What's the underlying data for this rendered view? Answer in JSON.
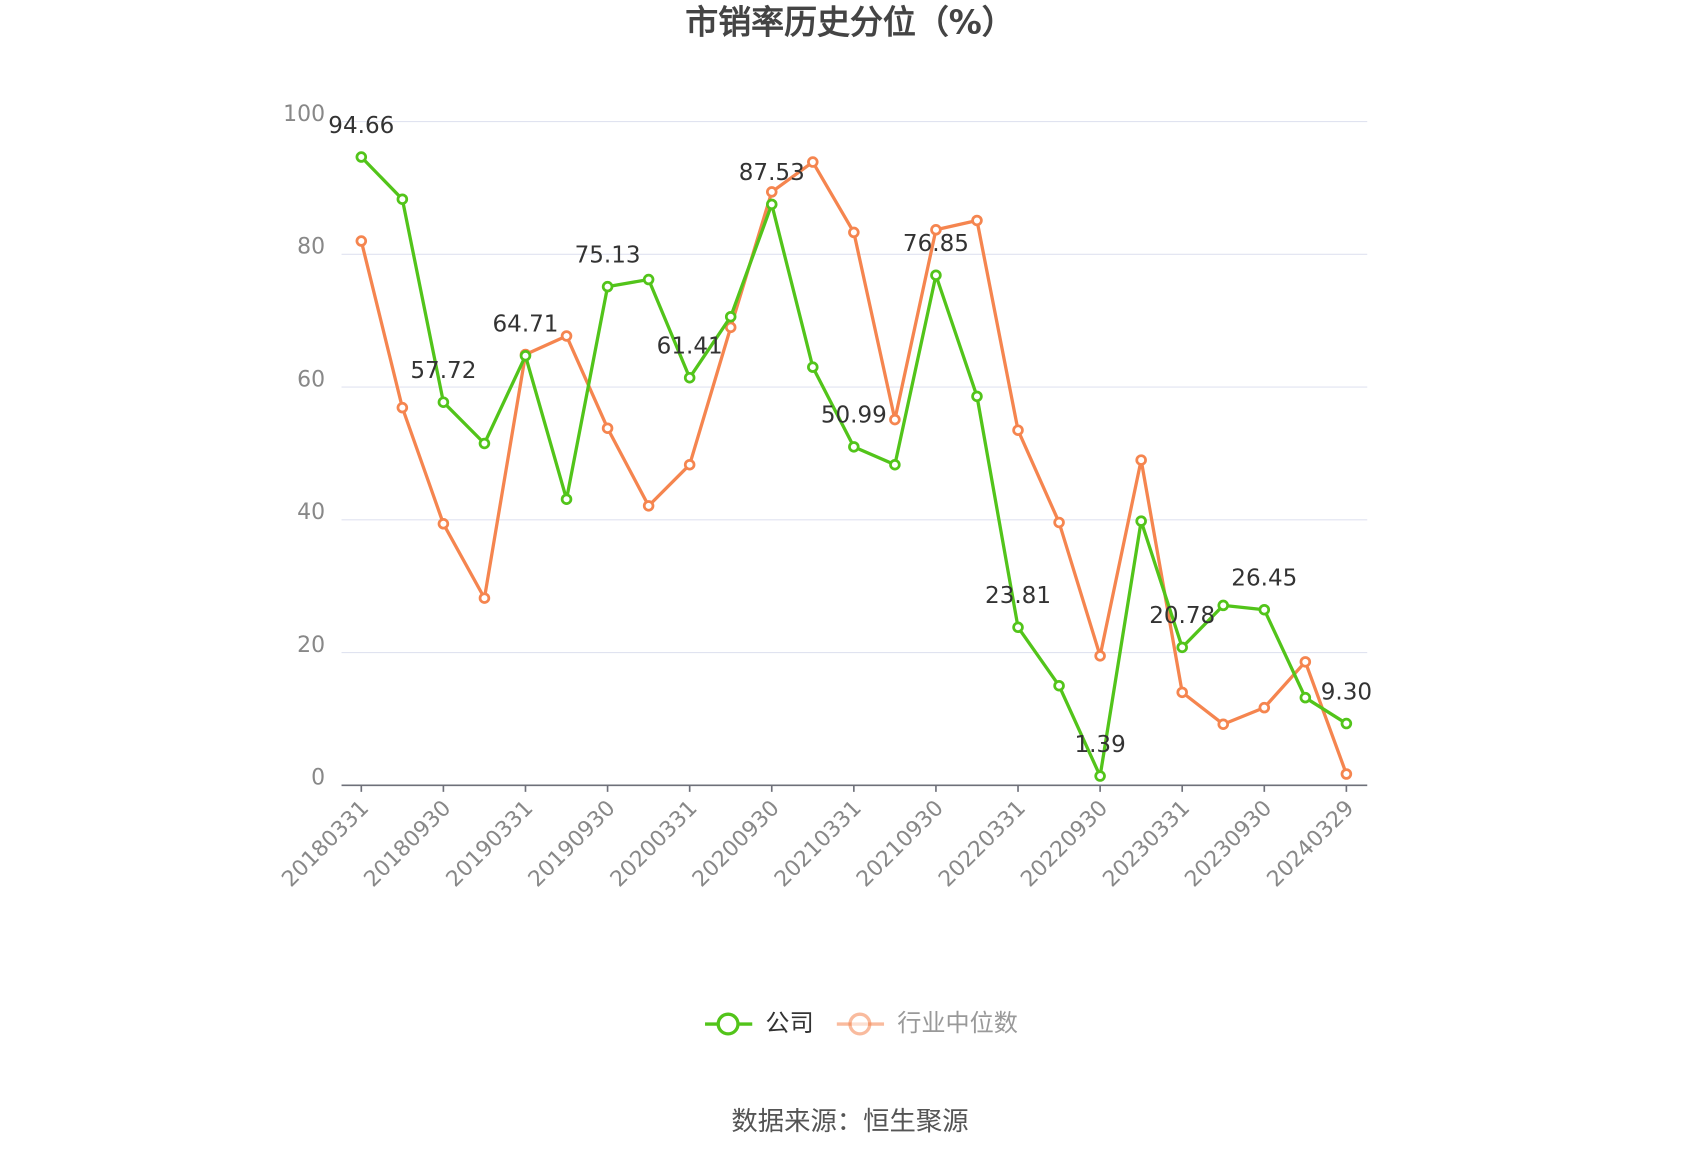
{
  "chart_data": {
    "type": "line",
    "title": "市销率历史分位（%）",
    "source": "数据来源：恒生聚源",
    "categories": [
      "20180331",
      null,
      "20180930",
      null,
      "20190331",
      null,
      "20190930",
      null,
      "20200331",
      null,
      "20200930",
      null,
      "20210331",
      null,
      "20210930",
      null,
      "20220331",
      null,
      "20220930",
      null,
      "20230331",
      null,
      "20230930",
      null,
      "20240329"
    ],
    "series": [
      {
        "name": "公司",
        "color": "#52c41a",
        "values": [
          94.66,
          88.3,
          57.72,
          51.5,
          64.71,
          43.1,
          75.13,
          76.2,
          61.41,
          70.6,
          87.53,
          63.0,
          50.99,
          48.3,
          76.85,
          58.6,
          23.81,
          15.0,
          1.39,
          39.8,
          20.78,
          27.1,
          26.45,
          13.2,
          9.3
        ],
        "value_labels": [
          "94.66",
          null,
          "57.72",
          null,
          "64.71",
          null,
          "75.13",
          null,
          "61.41",
          null,
          "87.53",
          null,
          "50.99",
          null,
          "76.85",
          null,
          "23.81",
          null,
          "1.39",
          null,
          "20.78",
          null,
          "26.45",
          null,
          "9.30"
        ]
      },
      {
        "name": "行业中位数",
        "color": "#f5854f",
        "values": [
          82.0,
          56.9,
          39.4,
          28.2,
          64.9,
          67.7,
          53.8,
          42.1,
          48.3,
          69.0,
          89.4,
          93.9,
          83.3,
          55.1,
          83.7,
          85.1,
          53.5,
          39.6,
          19.5,
          49.0,
          14.0,
          9.2,
          11.7,
          18.6,
          1.7
        ]
      }
    ],
    "ylim": [
      0,
      100
    ],
    "yticks": [
      0,
      20,
      40,
      60,
      80,
      100
    ],
    "grid": true
  }
}
